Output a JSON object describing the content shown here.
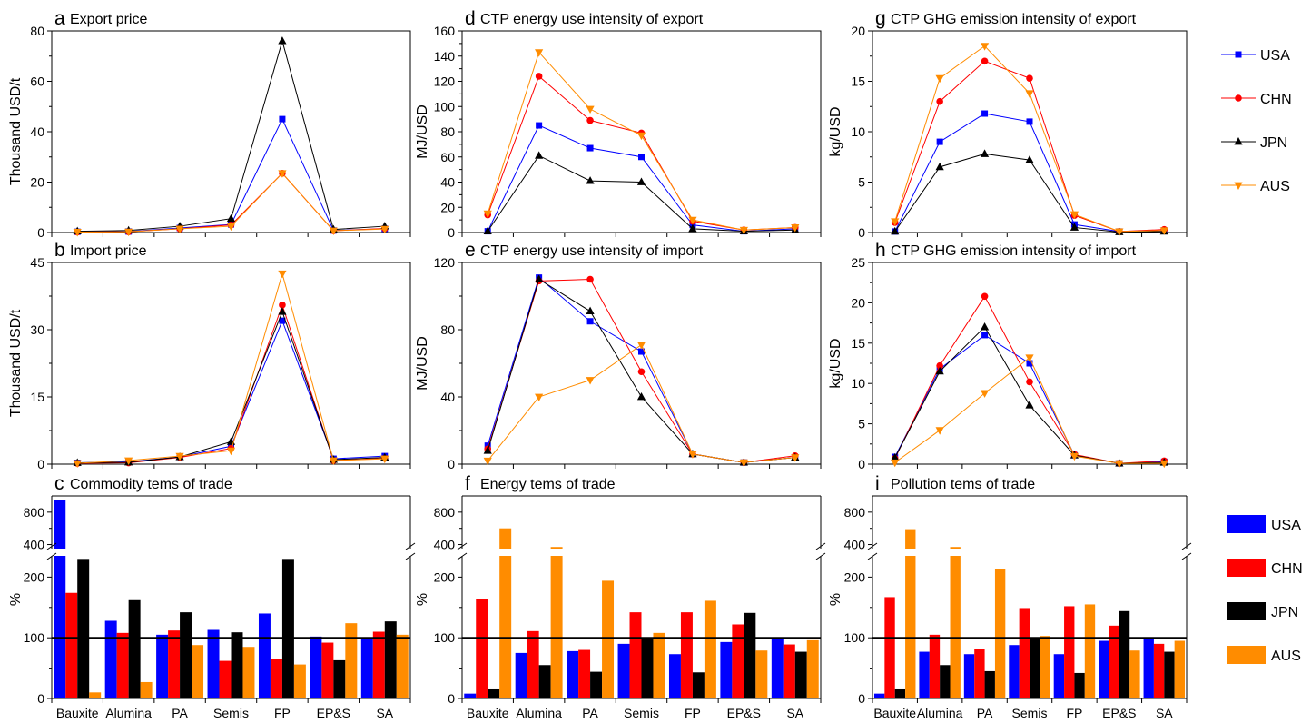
{
  "colors": {
    "USA": "#0000ff",
    "CHN": "#ff0000",
    "JPN": "#000000",
    "AUS": "#ff8c00"
  },
  "legend_line": {
    "items": [
      "USA",
      "CHN",
      "JPN",
      "AUS"
    ],
    "placement": "right"
  },
  "legend_bar": {
    "items": [
      "USA",
      "CHN",
      "JPN",
      "AUS"
    ],
    "placement": "right"
  },
  "chart_data": [
    {
      "id": "a",
      "letter": "a",
      "type": "line",
      "title": "Export price",
      "ylabel": "Thousand USD/t",
      "ylim": [
        0,
        80
      ],
      "yticks": [
        0,
        20,
        40,
        60,
        80
      ],
      "xlabels": false,
      "x": [
        "Bauxite",
        "Alumina",
        "PA",
        "Semis",
        "FP",
        "EP&S",
        "SA"
      ],
      "series": [
        {
          "name": "USA",
          "values": [
            0.3,
            0.4,
            1.8,
            3.2,
            45,
            0.8,
            1.5
          ]
        },
        {
          "name": "CHN",
          "values": [
            0.2,
            0.3,
            1.5,
            3.0,
            23.5,
            0.7,
            1.6
          ]
        },
        {
          "name": "JPN",
          "values": [
            0.5,
            0.8,
            2.5,
            5.5,
            76,
            1.2,
            2.5
          ]
        },
        {
          "name": "AUS",
          "values": [
            0.2,
            0.3,
            1.5,
            2.5,
            23.5,
            0.7,
            1.4
          ]
        }
      ]
    },
    {
      "id": "b",
      "letter": "b",
      "type": "line",
      "title": "Import price",
      "ylabel": "Thousand USD/t",
      "ylim": [
        0,
        45
      ],
      "yticks": [
        0,
        15,
        30,
        45
      ],
      "xlabels": false,
      "x": [
        "Bauxite",
        "Alumina",
        "PA",
        "Semis",
        "FP",
        "EP&S",
        "SA"
      ],
      "series": [
        {
          "name": "USA",
          "values": [
            0.3,
            0.5,
            1.6,
            4.0,
            32,
            1.2,
            1.8
          ]
        },
        {
          "name": "CHN",
          "values": [
            0.2,
            0.3,
            1.5,
            3.5,
            35.5,
            0.8,
            1.3
          ]
        },
        {
          "name": "JPN",
          "values": [
            0.3,
            0.4,
            1.6,
            5.0,
            34,
            1.0,
            1.5
          ]
        },
        {
          "name": "AUS",
          "values": [
            0.2,
            0.8,
            1.8,
            3.0,
            42.5,
            0.8,
            1.2
          ]
        }
      ]
    },
    {
      "id": "d",
      "letter": "d",
      "type": "line",
      "title": "CTP energy use intensity of export",
      "ylabel": "MJ/USD",
      "ylim": [
        0,
        160
      ],
      "yticks": [
        0,
        20,
        40,
        60,
        80,
        100,
        120,
        140,
        160
      ],
      "xlabels": false,
      "x": [
        "Bauxite",
        "Alumina",
        "PA",
        "Semis",
        "FP",
        "EP&S",
        "SA"
      ],
      "series": [
        {
          "name": "USA",
          "values": [
            1,
            85,
            67,
            60,
            6,
            1,
            3
          ]
        },
        {
          "name": "CHN",
          "values": [
            14,
            124,
            89,
            79,
            9,
            2,
            4
          ]
        },
        {
          "name": "JPN",
          "values": [
            1,
            61,
            41,
            40,
            3,
            1,
            2
          ]
        },
        {
          "name": "AUS",
          "values": [
            15,
            143,
            98,
            77,
            10,
            2,
            4
          ]
        }
      ]
    },
    {
      "id": "e",
      "letter": "e",
      "type": "line",
      "title": "CTP energy use intensity of import",
      "ylabel": "MJ/USD",
      "ylim": [
        0,
        120
      ],
      "yticks": [
        0,
        40,
        80,
        120
      ],
      "xlabels": false,
      "x": [
        "Bauxite",
        "Alumina",
        "PA",
        "Semis",
        "FP",
        "EP&S",
        "SA"
      ],
      "series": [
        {
          "name": "USA",
          "values": [
            11,
            111,
            85,
            67,
            6,
            1,
            4
          ]
        },
        {
          "name": "CHN",
          "values": [
            9,
            109,
            110,
            55,
            6,
            1,
            5
          ]
        },
        {
          "name": "JPN",
          "values": [
            8,
            110,
            91,
            40,
            6,
            1,
            4
          ]
        },
        {
          "name": "AUS",
          "values": [
            2,
            40,
            50,
            71,
            6,
            1,
            4
          ]
        }
      ]
    },
    {
      "id": "g",
      "letter": "g",
      "type": "line",
      "title": "CTP GHG emission intensity of export",
      "ylabel": "kg/USD",
      "ylim": [
        0,
        20
      ],
      "yticks": [
        0,
        5,
        10,
        15,
        20
      ],
      "xlabels": false,
      "x": [
        "Bauxite",
        "Alumina",
        "PA",
        "Semis",
        "FP",
        "EP&S",
        "SA"
      ],
      "series": [
        {
          "name": "USA",
          "values": [
            0.1,
            9.0,
            11.8,
            11.0,
            0.8,
            0.1,
            0.2
          ]
        },
        {
          "name": "CHN",
          "values": [
            1.0,
            13.0,
            17.0,
            15.3,
            1.7,
            0.1,
            0.3
          ]
        },
        {
          "name": "JPN",
          "values": [
            0.1,
            6.5,
            7.8,
            7.2,
            0.5,
            0.05,
            0.1
          ]
        },
        {
          "name": "AUS",
          "values": [
            1.1,
            15.3,
            18.5,
            13.8,
            1.8,
            0.1,
            0.2
          ]
        }
      ]
    },
    {
      "id": "h",
      "letter": "h",
      "type": "line",
      "title": "CTP GHG emission intensity of import",
      "ylabel": "kg/USD",
      "ylim": [
        0,
        25
      ],
      "yticks": [
        0,
        5,
        10,
        15,
        20,
        25
      ],
      "xlabels": false,
      "x": [
        "Bauxite",
        "Alumina",
        "PA",
        "Semis",
        "FP",
        "EP&S",
        "SA"
      ],
      "series": [
        {
          "name": "USA",
          "values": [
            0.9,
            11.8,
            16.0,
            12.5,
            1.1,
            0.1,
            0.3
          ]
        },
        {
          "name": "CHN",
          "values": [
            0.7,
            12.2,
            20.8,
            10.2,
            1.2,
            0.1,
            0.4
          ]
        },
        {
          "name": "JPN",
          "values": [
            0.8,
            11.5,
            17.0,
            7.3,
            1.1,
            0.1,
            0.2
          ]
        },
        {
          "name": "AUS",
          "values": [
            0.2,
            4.2,
            8.8,
            13.2,
            1.0,
            0.1,
            0.1
          ]
        }
      ]
    },
    {
      "id": "c",
      "letter": "c",
      "type": "bar",
      "title": "Commodity tems of trade",
      "ylabel": "%",
      "categories": [
        "Bauxite",
        "Alumina",
        "PA",
        "Semis",
        "FP",
        "EP&S",
        "SA"
      ],
      "ylim_lower": [
        0,
        235
      ],
      "yticks_lower": [
        0,
        100,
        200
      ],
      "ylim_upper": [
        350,
        1000
      ],
      "yticks_upper": [
        400,
        800
      ],
      "reference_line": 100,
      "series": [
        {
          "name": "USA",
          "values": [
            950,
            128,
            105,
            113,
            140,
            102,
            100
          ]
        },
        {
          "name": "CHN",
          "values": [
            174,
            108,
            112,
            62,
            65,
            92,
            110
          ]
        },
        {
          "name": "JPN",
          "values": [
            230,
            162,
            142,
            109,
            230,
            63,
            127
          ]
        },
        {
          "name": "AUS",
          "values": [
            10,
            27,
            88,
            85,
            56,
            124,
            105
          ]
        }
      ]
    },
    {
      "id": "f",
      "letter": "f",
      "type": "bar",
      "title": "Energy tems of trade",
      "ylabel": "%",
      "categories": [
        "Bauxite",
        "Alumina",
        "PA",
        "Semis",
        "FP",
        "EP&S",
        "SA"
      ],
      "ylim_lower": [
        0,
        235
      ],
      "yticks_lower": [
        0,
        100,
        200
      ],
      "ylim_upper": [
        350,
        1000
      ],
      "yticks_upper": [
        400,
        800
      ],
      "reference_line": 100,
      "series": [
        {
          "name": "USA",
          "values": [
            8,
            75,
            78,
            90,
            73,
            93,
            101
          ]
        },
        {
          "name": "CHN",
          "values": [
            164,
            111,
            80,
            142,
            142,
            122,
            89
          ]
        },
        {
          "name": "JPN",
          "values": [
            15,
            55,
            44,
            99,
            43,
            141,
            77
          ]
        },
        {
          "name": "AUS",
          "values": [
            600,
            370,
            194,
            108,
            161,
            79,
            96
          ]
        }
      ]
    },
    {
      "id": "i",
      "letter": "i",
      "type": "bar",
      "title": "Pollution tems of trade",
      "ylabel": "%",
      "categories": [
        "Bauxite",
        "Alumina",
        "PA",
        "Semis",
        "FP",
        "EP&S",
        "SA"
      ],
      "ylim_lower": [
        0,
        235
      ],
      "yticks_lower": [
        0,
        100,
        200
      ],
      "ylim_upper": [
        350,
        1000
      ],
      "yticks_upper": [
        400,
        800
      ],
      "reference_line": 100,
      "series": [
        {
          "name": "USA",
          "values": [
            8,
            77,
            73,
            88,
            73,
            95,
            101
          ]
        },
        {
          "name": "CHN",
          "values": [
            167,
            105,
            82,
            149,
            152,
            120,
            90
          ]
        },
        {
          "name": "JPN",
          "values": [
            15,
            55,
            45,
            99,
            42,
            144,
            77
          ]
        },
        {
          "name": "AUS",
          "values": [
            590,
            370,
            214,
            103,
            155,
            79,
            95
          ]
        }
      ]
    }
  ]
}
